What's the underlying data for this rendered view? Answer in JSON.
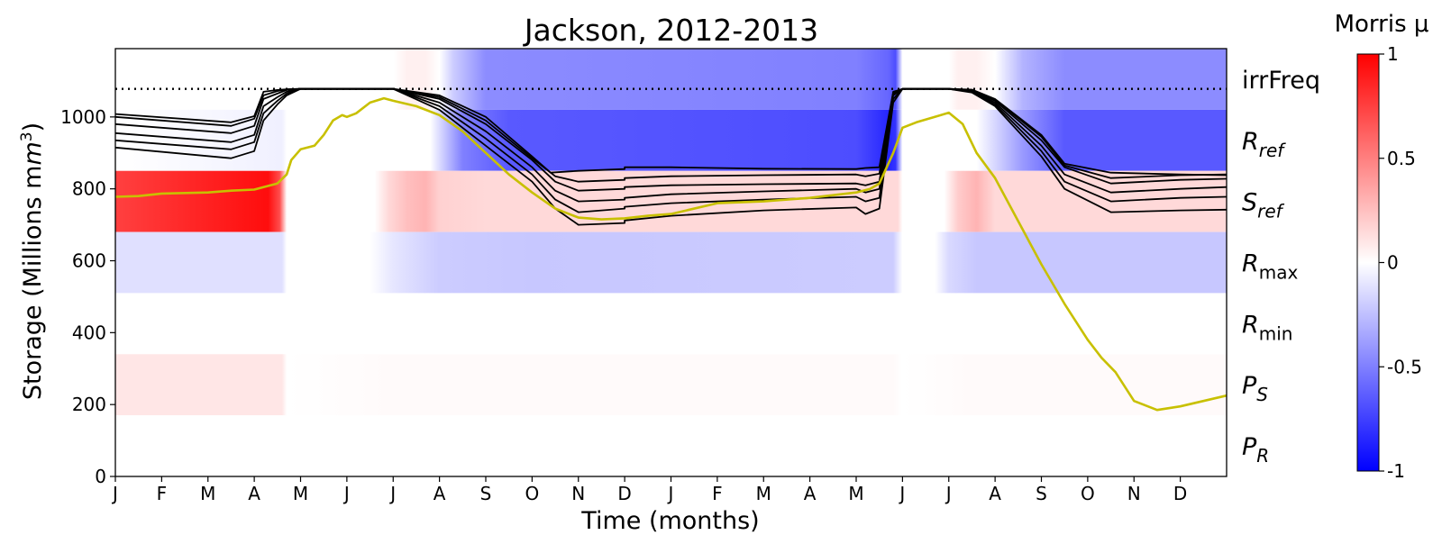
{
  "chart_data": {
    "type": "line",
    "title": "Jackson, 2012-2013",
    "xlabel": "Time (months)",
    "ylabel": "Storage (Millions m",
    "ylabel_sup": "3",
    "ylabel_close": ")",
    "ylim": [
      0,
      1190
    ],
    "xlim": [
      0,
      24
    ],
    "yticks": [
      0,
      200,
      400,
      600,
      800,
      1000
    ],
    "month_ticks": [
      "J",
      "F",
      "M",
      "A",
      "M",
      "J",
      "J",
      "A",
      "S",
      "O",
      "N",
      "D",
      "J",
      "F",
      "M",
      "A",
      "M",
      "J",
      "J",
      "A",
      "S",
      "O",
      "N",
      "D"
    ],
    "capacity_line": 1078,
    "colorbar": {
      "title": "Morris μ",
      "range": [
        -1,
        1
      ],
      "ticks": [
        "1",
        "0.5",
        "0",
        "-0.5",
        "-1"
      ],
      "tick_values": [
        1,
        0.5,
        0,
        -0.5,
        -1
      ]
    },
    "bands": [
      {
        "label_main": "irrFreq",
        "label_sub": "",
        "y_range": [
          1020,
          1190
        ],
        "mu": [
          [
            0,
            0
          ],
          [
            6,
            0
          ],
          [
            6.3,
            0.06
          ],
          [
            6.7,
            0.06
          ],
          [
            7,
            0
          ],
          [
            7.3,
            -0.2
          ],
          [
            8,
            -0.45
          ],
          [
            16,
            -0.5
          ],
          [
            16.7,
            -0.6
          ],
          [
            16.85,
            -0.7
          ],
          [
            17,
            0
          ],
          [
            18,
            0
          ],
          [
            18.2,
            0.06
          ],
          [
            18.6,
            0.06
          ],
          [
            19,
            0
          ],
          [
            19.6,
            -0.3
          ],
          [
            20.5,
            -0.45
          ],
          [
            24,
            -0.45
          ]
        ]
      },
      {
        "label_main": "R",
        "label_sub": "ref",
        "label_sub_italic": true,
        "y_range": [
          850,
          1020
        ],
        "mu": [
          [
            0,
            0
          ],
          [
            2,
            -0.03
          ],
          [
            3.6,
            -0.06
          ],
          [
            3.7,
            0
          ],
          [
            6.8,
            0
          ],
          [
            7.5,
            -0.5
          ],
          [
            8.5,
            -0.65
          ],
          [
            16,
            -0.7
          ],
          [
            16.7,
            -0.85
          ],
          [
            16.85,
            -0.8
          ],
          [
            17,
            0
          ],
          [
            18.6,
            0
          ],
          [
            19.6,
            -0.4
          ],
          [
            20.5,
            -0.65
          ],
          [
            24,
            -0.65
          ]
        ]
      },
      {
        "label_main": "S",
        "label_sub": "ref",
        "label_sub_italic": true,
        "y_range": [
          680,
          850
        ],
        "mu": [
          [
            0,
            0.75
          ],
          [
            2.5,
            0.9
          ],
          [
            3.3,
            0.95
          ],
          [
            3.55,
            0.7
          ],
          [
            3.7,
            0
          ],
          [
            5.6,
            0
          ],
          [
            5.9,
            0.15
          ],
          [
            6.3,
            0.25
          ],
          [
            6.7,
            0.3
          ],
          [
            7,
            0.18
          ],
          [
            8,
            0.15
          ],
          [
            16.9,
            0.15
          ],
          [
            17,
            0
          ],
          [
            17.9,
            0
          ],
          [
            18.2,
            0.2
          ],
          [
            18.6,
            0.3
          ],
          [
            19,
            0.15
          ],
          [
            24,
            0.15
          ]
        ]
      },
      {
        "label_main": "R",
        "label_sub": "max",
        "label_sub_italic": false,
        "y_range": [
          510,
          680
        ],
        "mu": [
          [
            0,
            -0.12
          ],
          [
            3.6,
            -0.12
          ],
          [
            3.7,
            0
          ],
          [
            5.5,
            0
          ],
          [
            6,
            -0.1
          ],
          [
            7,
            -0.2
          ],
          [
            9,
            -0.22
          ],
          [
            16.8,
            -0.2
          ],
          [
            17,
            0
          ],
          [
            17.7,
            0
          ],
          [
            18,
            -0.15
          ],
          [
            18.6,
            -0.22
          ],
          [
            24,
            -0.22
          ]
        ]
      },
      {
        "label_main": "R",
        "label_sub": "min",
        "label_sub_italic": false,
        "y_range": [
          340,
          510
        ],
        "mu": [
          [
            0,
            0
          ],
          [
            24,
            0
          ]
        ]
      },
      {
        "label_main": "P",
        "label_sub": "S",
        "label_sub_italic": true,
        "y_range": [
          170,
          340
        ],
        "mu": [
          [
            0,
            0.1
          ],
          [
            3.6,
            0.1
          ],
          [
            3.7,
            0
          ],
          [
            6,
            0.02
          ],
          [
            16.8,
            0.02
          ],
          [
            17,
            0
          ],
          [
            18.5,
            0.02
          ],
          [
            24,
            0.02
          ]
        ]
      },
      {
        "label_main": "P",
        "label_sub": "R",
        "label_sub_italic": true,
        "y_range": [
          0,
          170
        ],
        "mu": [
          [
            0,
            0
          ],
          [
            24,
            0
          ]
        ]
      }
    ],
    "ensemble_series": [
      {
        "x": [
          0,
          2.5,
          3.0,
          3.2,
          3.5,
          3.7,
          4.0,
          5.0,
          5.5,
          6.0,
          7.0,
          8.0,
          9.0,
          9.4,
          10,
          11,
          11,
          12,
          14,
          16,
          16.2,
          16.5,
          16.8,
          17.0,
          18.0,
          18.5,
          19.0,
          20.0,
          20.5,
          21.5,
          23,
          24
        ],
        "y": [
          1008,
          985,
          1002,
          1070,
          1075,
          1077,
          1078,
          1078,
          1078,
          1078,
          1060,
          1000,
          890,
          845,
          850,
          855,
          860,
          860,
          856,
          855,
          858,
          860,
          1070,
          1078,
          1078,
          1076,
          1050,
          950,
          870,
          845,
          840,
          838
        ]
      },
      {
        "x": [
          0,
          2.5,
          3.0,
          3.2,
          3.5,
          3.7,
          4.0,
          5.0,
          5.5,
          6.0,
          7.0,
          8.0,
          9.0,
          9.5,
          10,
          11,
          11,
          12,
          14,
          16,
          16.2,
          16.5,
          16.8,
          17.0,
          18.0,
          18.5,
          19.0,
          20.0,
          20.5,
          21.5,
          23,
          24
        ],
        "y": [
          980,
          955,
          975,
          1050,
          1065,
          1075,
          1078,
          1078,
          1078,
          1078,
          1050,
          980,
          880,
          820,
          795,
          800,
          805,
          810,
          813,
          815,
          810,
          820,
          1065,
          1078,
          1078,
          1074,
          1045,
          935,
          860,
          815,
          825,
          828
        ]
      },
      {
        "x": [
          0,
          2.5,
          3.0,
          3.2,
          3.5,
          3.7,
          4.0,
          5.0,
          5.5,
          6.0,
          7.0,
          8.0,
          9.0,
          9.5,
          10,
          11,
          11,
          12,
          14,
          16,
          16.2,
          16.5,
          16.8,
          17.0,
          18.0,
          18.5,
          19.0,
          20.0,
          20.5,
          21.5,
          23,
          24
        ],
        "y": [
          955,
          930,
          950,
          1030,
          1055,
          1070,
          1078,
          1078,
          1078,
          1078,
          1040,
          960,
          860,
          795,
          765,
          770,
          775,
          785,
          793,
          800,
          790,
          800,
          1060,
          1078,
          1078,
          1072,
          1040,
          920,
          840,
          790,
          800,
          805
        ]
      },
      {
        "x": [
          0,
          2.5,
          3.0,
          3.2,
          3.5,
          3.7,
          4.0,
          5.0,
          5.5,
          6.0,
          7.0,
          8.0,
          9.0,
          9.5,
          10,
          11,
          11,
          12,
          14,
          16,
          16.2,
          16.5,
          16.8,
          17.0,
          18.0,
          18.5,
          19.0,
          20.0,
          20.5,
          21.5,
          23,
          24
        ],
        "y": [
          935,
          910,
          930,
          1010,
          1045,
          1065,
          1078,
          1078,
          1078,
          1078,
          1030,
          940,
          840,
          770,
          735,
          745,
          750,
          760,
          770,
          778,
          765,
          775,
          1050,
          1078,
          1078,
          1070,
          1035,
          905,
          820,
          765,
          775,
          778
        ]
      },
      {
        "x": [
          0,
          2.5,
          3.0,
          3.2,
          3.5,
          3.7,
          4.0,
          5.0,
          5.5,
          6.0,
          7.0,
          8.0,
          9.0,
          9.5,
          10,
          11,
          11,
          12,
          14,
          16,
          16.2,
          16.5,
          16.8,
          17.0,
          18.0,
          18.5,
          19.0,
          20.0,
          20.5,
          21.5,
          23,
          24
        ],
        "y": [
          915,
          885,
          905,
          990,
          1035,
          1060,
          1078,
          1078,
          1078,
          1078,
          1020,
          920,
          820,
          745,
          700,
          705,
          712,
          725,
          740,
          748,
          730,
          745,
          1040,
          1078,
          1078,
          1068,
          1030,
          890,
          800,
          735,
          740,
          742
        ]
      },
      {
        "x": [
          0,
          2.5,
          3.0,
          3.2,
          3.5,
          3.7,
          4.0,
          5.0,
          5.5,
          6.0,
          7.0,
          8.0,
          9.0,
          9.5,
          10,
          11,
          11,
          12,
          14,
          16,
          16.2,
          16.5,
          16.8,
          17.0,
          18.0,
          18.5,
          19.0,
          20.0,
          20.5,
          21.5,
          23,
          24
        ],
        "y": [
          1000,
          975,
          995,
          1060,
          1072,
          1077,
          1078,
          1078,
          1078,
          1078,
          1055,
          990,
          885,
          835,
          820,
          825,
          830,
          835,
          838,
          840,
          835,
          842,
          1068,
          1078,
          1078,
          1075,
          1048,
          945,
          865,
          830,
          838,
          840
        ]
      }
    ],
    "observed_series": {
      "name": "",
      "color": "#c8c000",
      "x": [
        0,
        0.5,
        1,
        2,
        2.5,
        3,
        3.2,
        3.5,
        3.7,
        3.8,
        4.0,
        4.3,
        4.5,
        4.7,
        4.9,
        5.0,
        5.2,
        5.5,
        5.8,
        6.0,
        6.5,
        7.0,
        7.5,
        8.0,
        8.5,
        9.0,
        9.5,
        10,
        10.5,
        11,
        11.5,
        12,
        13,
        14,
        15,
        16,
        16.3,
        16.5,
        16.8,
        17.0,
        17.3,
        17.7,
        18.0,
        18.3,
        18.6,
        19,
        19.5,
        20,
        20.5,
        21,
        21.3,
        21.6,
        22,
        22.5,
        23,
        24
      ],
      "y": [
        778,
        780,
        787,
        790,
        795,
        798,
        805,
        815,
        840,
        880,
        910,
        920,
        950,
        990,
        1005,
        1000,
        1010,
        1040,
        1052,
        1045,
        1030,
        1005,
        960,
        900,
        840,
        790,
        745,
        720,
        715,
        718,
        725,
        730,
        760,
        765,
        775,
        790,
        800,
        815,
        900,
        970,
        985,
        1000,
        1012,
        980,
        900,
        830,
        710,
        590,
        480,
        380,
        330,
        290,
        210,
        185,
        195,
        225
      ]
    }
  }
}
